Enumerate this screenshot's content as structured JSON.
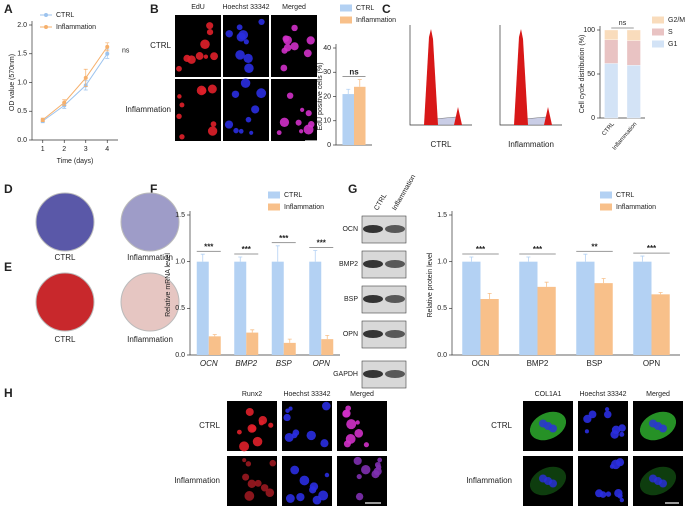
{
  "panel_labels": [
    "A",
    "B",
    "C",
    "D",
    "E",
    "F",
    "G",
    "H"
  ],
  "edu_images": {
    "columns": [
      "EdU",
      "Hoechst 33342",
      "Merged"
    ],
    "rows": [
      "CTRL",
      "Inflammation"
    ]
  },
  "flow_histograms": {
    "labels": [
      "CTRL",
      "Inflammation"
    ]
  },
  "alp_staining": {
    "labels": [
      "CTRL",
      "Inflammation"
    ]
  },
  "ars_staining": {
    "labels": [
      "CTRL",
      "Inflammation"
    ]
  },
  "western_blot": {
    "columns": [
      "CTRL",
      "Inflammation"
    ],
    "rows": [
      "OCN",
      "BMP2",
      "BSP",
      "OPN",
      "GAPDH"
    ]
  },
  "runx2_images": {
    "columns": [
      "Runx2",
      "Hoechst 33342",
      "Merged"
    ],
    "rows": [
      "CTRL",
      "Inflammation"
    ]
  },
  "col1a1_images": {
    "columns": [
      "COL1A1",
      "Hoechst 33342",
      "Merged"
    ],
    "rows": [
      "CTRL",
      "Inflammation"
    ]
  },
  "chart_data": [
    {
      "type": "line",
      "y_label": "OD value (570nm)",
      "x_label": "Time (days)",
      "x": [
        1,
        2,
        3,
        4
      ],
      "xlim": [
        0.5,
        4.5
      ],
      "xticks": [
        1,
        2,
        3,
        4
      ],
      "ylim": [
        0,
        2
      ],
      "yticks": [
        {
          "value": 0,
          "label": "0.0"
        },
        0.5,
        {
          "value": 1,
          "label": "1.0"
        },
        1.5,
        {
          "value": 2,
          "label": "2.0"
        }
      ],
      "annotation": "ns",
      "series": [
        {
          "name": "CTRL",
          "color": "#9cc3ee",
          "values": [
            0.33,
            0.6,
            0.95,
            1.5
          ],
          "errors": [
            0.03,
            0.05,
            0.08,
            0.08
          ]
        },
        {
          "name": "Inflammation",
          "color": "#f6b06c",
          "values": [
            0.35,
            0.65,
            1.08,
            1.62
          ],
          "errors": [
            0.03,
            0.05,
            0.15,
            0.07
          ]
        }
      ]
    },
    {
      "type": "bar",
      "y_label": "EdU positive cells (%)",
      "categories": [
        null
      ],
      "ylim": [
        0,
        40
      ],
      "yticks": [
        0,
        10,
        20,
        30,
        40
      ],
      "annotations": [
        "ns"
      ],
      "series": [
        {
          "name": "CTRL",
          "color": "#b3d1f3",
          "values": [
            21
          ],
          "errors": [
            2
          ]
        },
        {
          "name": "Inflammation",
          "color": "#f8c08a",
          "values": [
            24
          ],
          "errors": [
            3
          ]
        }
      ]
    },
    {
      "type": "stacked_bar",
      "y_label": "Cell cycle distribution (%)",
      "categories": [
        "CTRL",
        "Inflammation"
      ],
      "ylim": [
        0,
        100
      ],
      "yticks": [
        0,
        50,
        100
      ],
      "annotations": [
        "ns"
      ],
      "series": [
        {
          "name": "G1",
          "color": "#d3e3f6",
          "values": [
            62,
            60
          ]
        },
        {
          "name": "S",
          "color": "#e9c3c3",
          "values": [
            27,
            28
          ]
        },
        {
          "name": "G2/M",
          "color": "#f9dcbc",
          "values": [
            11,
            12
          ]
        }
      ]
    },
    {
      "type": "bar",
      "y_label": "Relative mRNA level",
      "categories": [
        "OCN",
        "BMP2",
        "BSP",
        "OPN"
      ],
      "italic_categories": true,
      "ylim": [
        0,
        1.5
      ],
      "yticks": [
        {
          "value": 0,
          "label": "0.0"
        },
        0.5,
        {
          "value": 1,
          "label": "1.0"
        },
        1.5
      ],
      "annotations": [
        "***",
        "***",
        "***",
        "***"
      ],
      "series": [
        {
          "name": "CTRL",
          "color": "#b3d1f3",
          "values": [
            1.0,
            1.0,
            1.0,
            1.0
          ],
          "errors": [
            0.08,
            0.05,
            0.17,
            0.12
          ]
        },
        {
          "name": "Inflammation",
          "color": "#f8c08a",
          "values": [
            0.2,
            0.24,
            0.13,
            0.17
          ],
          "errors": [
            0.02,
            0.03,
            0.04,
            0.04
          ]
        }
      ]
    },
    {
      "type": "bar",
      "y_label": "Relative protein level",
      "categories": [
        "OCN",
        "BMP2",
        "BSP",
        "OPN"
      ],
      "italic_categories": false,
      "ylim": [
        0,
        1.5
      ],
      "yticks": [
        {
          "value": 0,
          "label": "0.0"
        },
        0.5,
        {
          "value": 1,
          "label": "1.0"
        },
        1.5
      ],
      "annotations": [
        "***",
        "***",
        "**",
        "***"
      ],
      "series": [
        {
          "name": "CTRL",
          "color": "#b3d1f3",
          "values": [
            1.0,
            1.0,
            1.0,
            1.0
          ],
          "errors": [
            0.05,
            0.05,
            0.08,
            0.06
          ]
        },
        {
          "name": "Inflammation",
          "color": "#f8c08a",
          "values": [
            0.6,
            0.73,
            0.77,
            0.65
          ],
          "errors": [
            0.06,
            0.05,
            0.05,
            0.02
          ]
        }
      ]
    }
  ]
}
